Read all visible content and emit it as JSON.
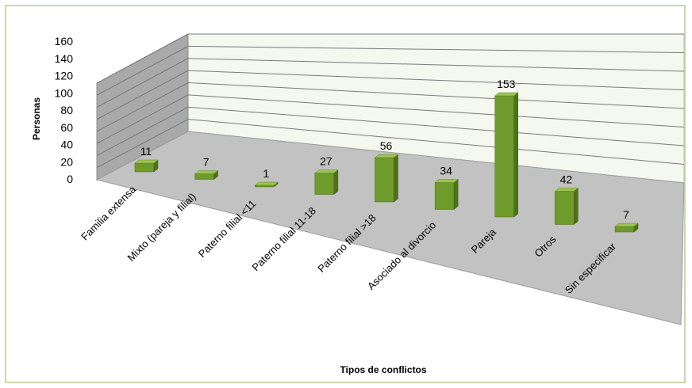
{
  "chart_data": {
    "type": "bar",
    "categories": [
      "Familia extensa",
      "Mixto (pareja y filial)",
      "Paterno filial <11",
      "Paterno filial 11-18",
      "Paterno filial >18",
      "Asociado al divorcio",
      "Pareja",
      "Otros",
      "Sin especificar"
    ],
    "values": [
      11,
      7,
      1,
      27,
      56,
      34,
      153,
      42,
      7
    ],
    "xlabel": "Tipos de conflictos",
    "ylabel": "Personas",
    "ylim": [
      0,
      160
    ],
    "yticks": [
      0,
      20,
      40,
      60,
      80,
      100,
      120,
      140,
      160
    ],
    "grid": true,
    "three_d": true,
    "colors": {
      "bar_front": "#6f9a2c",
      "bar_side": "#4f7119",
      "bar_top": "#9cc455",
      "back_wall": "#f4f8ee",
      "side_wall": "#a9a9a9",
      "floor": "#c2c2c2",
      "frame": "#c9d9a8"
    }
  }
}
